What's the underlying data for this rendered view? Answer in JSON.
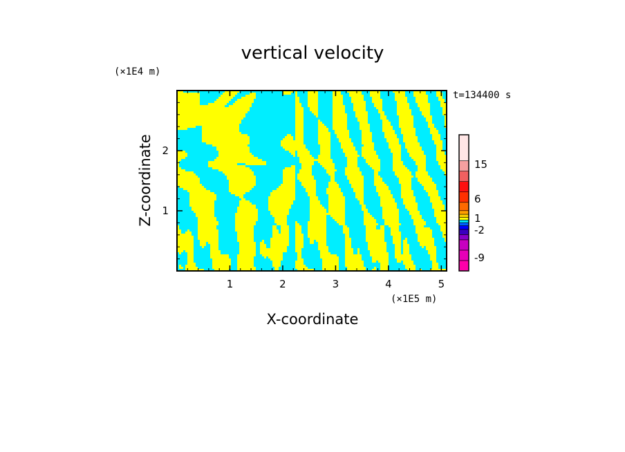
{
  "colors": {
    "positive": "#ffff00",
    "negative": "#00eeff",
    "frame": "#000000",
    "background": "#ffffff"
  },
  "chart_data": {
    "type": "heatmap",
    "title": "vertical velocity",
    "xlabel": "X-coordinate",
    "ylabel": "Z-coordinate",
    "x_unit": "(×1E5 m)",
    "y_unit": "(×1E4 m)",
    "time_label": "t=134400 s",
    "xlim": [
      0,
      5.1
    ],
    "ylim": [
      0,
      3.0
    ],
    "x_ticks": [
      1,
      2,
      3,
      4,
      5
    ],
    "x_tick_labels": [
      "1",
      "2",
      "3",
      "4",
      "5"
    ],
    "y_ticks": [
      1,
      2
    ],
    "y_tick_labels": [
      "1",
      "2"
    ],
    "colorbar": {
      "levels": [
        {
          "color": "#ff00aa"
        },
        {
          "color": "#e800b8"
        },
        {
          "color": "#c800c0"
        },
        {
          "color": "#8800c8"
        },
        {
          "color": "#3a00c0"
        },
        {
          "color": "#0000ff"
        },
        {
          "color": "#0060ff"
        },
        {
          "color": "#00eeff"
        },
        {
          "color": "#ffff00"
        },
        {
          "color": "#ffd200"
        },
        {
          "color": "#ffa000"
        },
        {
          "color": "#ff6a00"
        },
        {
          "color": "#ff3000"
        },
        {
          "color": "#ff1010"
        },
        {
          "color": "#f06060"
        },
        {
          "color": "#f5a0a0"
        },
        {
          "color": "#ffe6e6"
        }
      ],
      "labels": [
        "-9",
        "-2",
        "1",
        "6",
        "15"
      ]
    }
  }
}
